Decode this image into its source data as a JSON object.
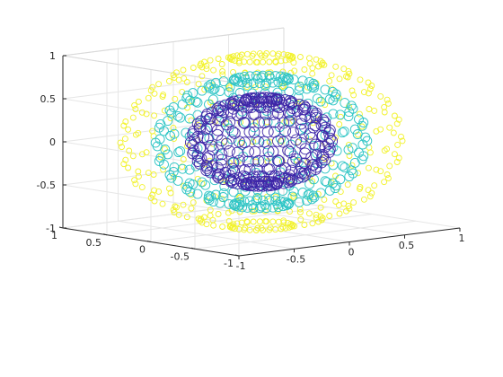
{
  "chart_data": {
    "type": "scatter3",
    "title": "",
    "xlabel": "",
    "ylabel": "",
    "zlabel": "",
    "xlim": [
      -1,
      1
    ],
    "ylim": [
      -1,
      1
    ],
    "zlim": [
      -1,
      1
    ],
    "grid": true,
    "box": "open",
    "marker": "circle",
    "view": {
      "azimuth": -37.5,
      "elevation": 30
    },
    "x_ticks": [
      {
        "value": -1,
        "label": "-1"
      },
      {
        "value": -0.5,
        "label": "-0.5"
      },
      {
        "value": 0,
        "label": "0"
      },
      {
        "value": 0.5,
        "label": "0.5"
      },
      {
        "value": 1,
        "label": "1"
      }
    ],
    "y_ticks": [
      {
        "value": -1,
        "label": "-1"
      },
      {
        "value": -0.5,
        "label": "-0.5"
      },
      {
        "value": 0,
        "label": "0"
      },
      {
        "value": 0.5,
        "label": "0.5"
      },
      {
        "value": 1,
        "label": "1"
      }
    ],
    "z_ticks": [
      {
        "value": -1,
        "label": "-1"
      },
      {
        "value": -0.5,
        "label": "-0.5"
      },
      {
        "value": 0,
        "label": "0"
      },
      {
        "value": 0.5,
        "label": "0.5"
      },
      {
        "value": 1,
        "label": "1"
      }
    ],
    "series": [
      {
        "radius": 0.5,
        "lat_steps": 14,
        "lon_steps": 22,
        "color": "#3e26a8",
        "marker_size": 6,
        "stroke": 0.9
      },
      {
        "radius": 0.75,
        "lat_steps": 12,
        "lon_steps": 26,
        "color": "#2ec5c5",
        "marker_size": 5,
        "stroke": 0.9
      },
      {
        "radius": 1.0,
        "lat_steps": 14,
        "lon_steps": 30,
        "color": "#f2f22a",
        "marker_size": 3,
        "stroke": 0.9
      }
    ]
  }
}
